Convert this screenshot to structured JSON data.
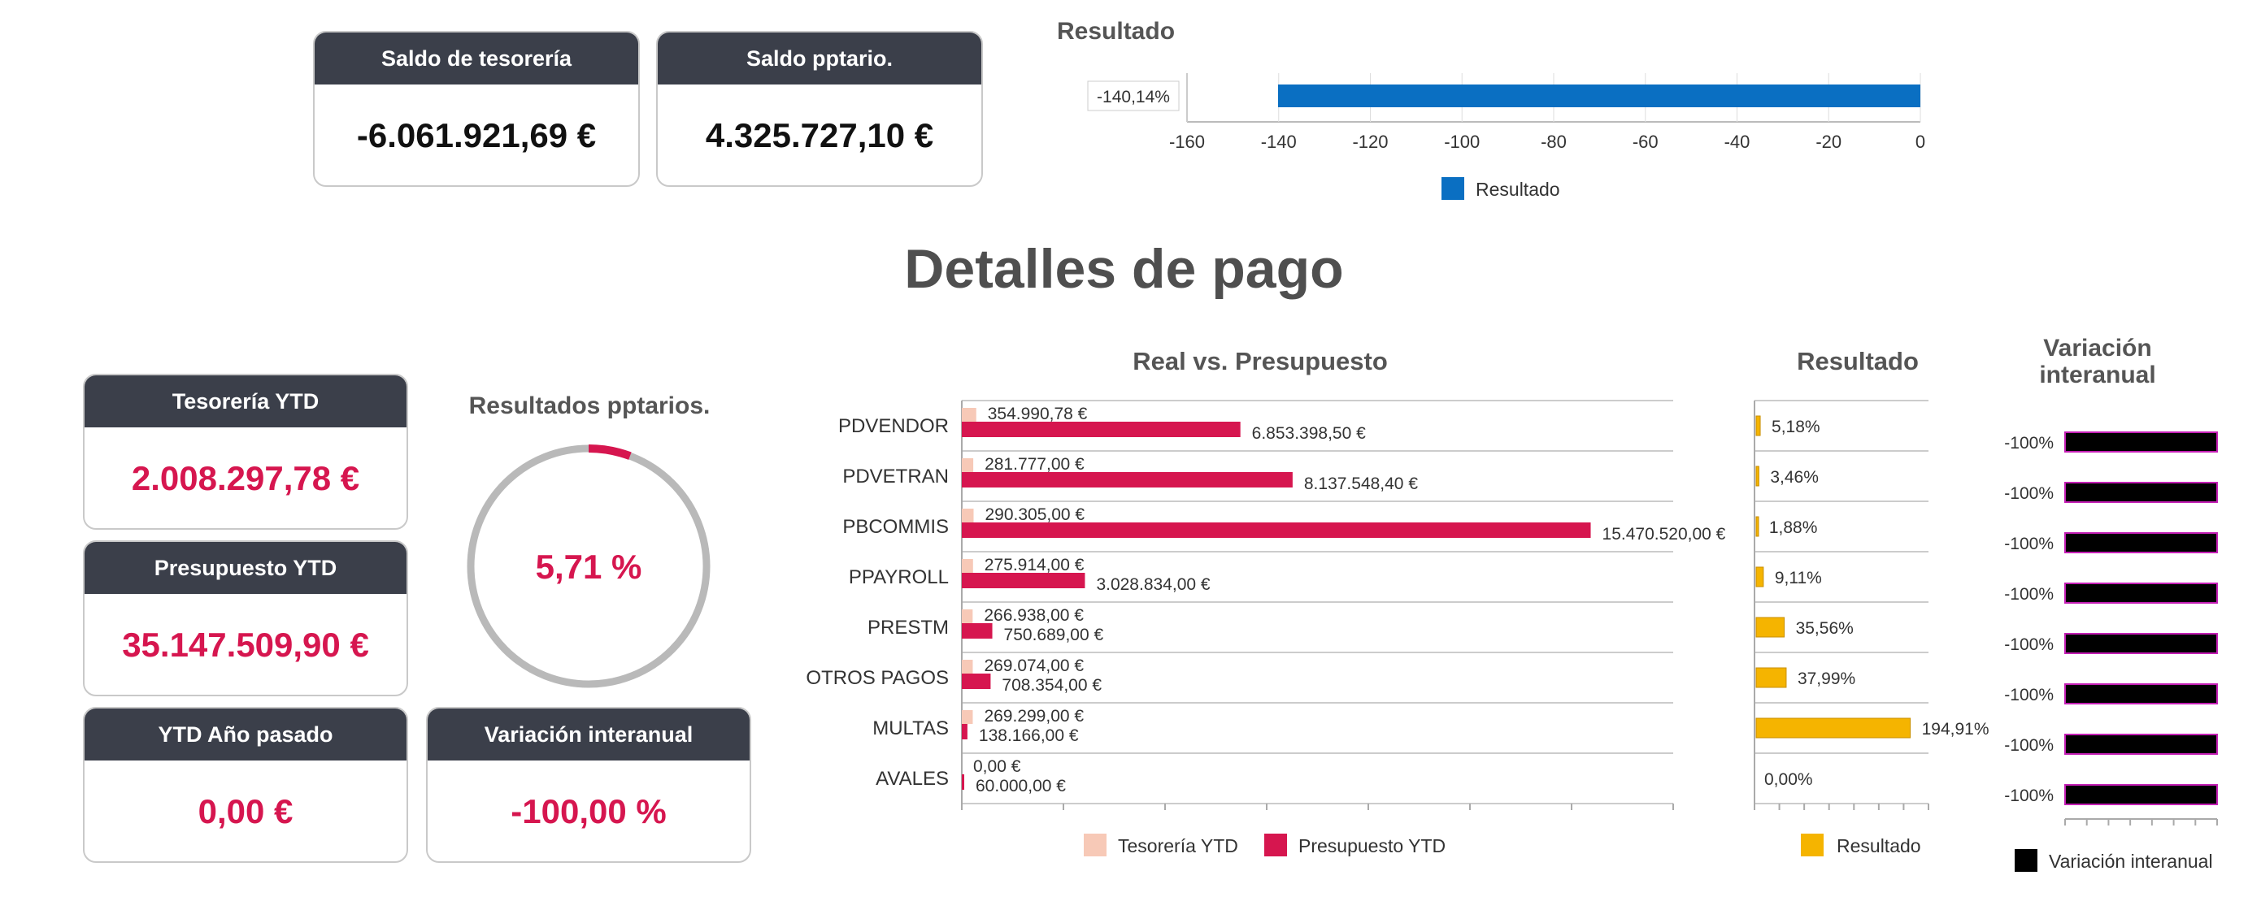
{
  "top_kpis": [
    {
      "label": "Saldo de tesorería",
      "value": "-6.061.921,69 €"
    },
    {
      "label": "Saldo pptario.",
      "value": "4.325.727,10 €"
    }
  ],
  "section_title": "Detalles de pago",
  "left_kpis": [
    {
      "label": "Tesorería YTD",
      "value": "2.008.297,78 €"
    },
    {
      "label": "Presupuesto YTD",
      "value": "35.147.509,90 €"
    },
    {
      "label": "YTD Año pasado",
      "value": "0,00 €"
    },
    {
      "label": "Variación interanual",
      "value": "-100,00 %"
    }
  ],
  "donut": {
    "title": "Resultados pptarios.",
    "value_label": "5,71 %",
    "percent": 5.71,
    "colors": {
      "track": "#b9b9b9",
      "fill": "#d6164f"
    }
  },
  "chart_data": [
    {
      "type": "bar",
      "orientation": "horizontal",
      "title": "Resultado",
      "categories": [
        ""
      ],
      "series": [
        {
          "name": "Resultado",
          "values": [
            -140.14
          ],
          "labels": [
            "-140,14%"
          ],
          "color": "#0a6fc2"
        }
      ],
      "xlim": [
        -160,
        0
      ],
      "ticks": [
        -160,
        -140,
        -120,
        -100,
        -80,
        -60,
        -40,
        -20,
        0
      ],
      "legend": "bottom"
    },
    {
      "type": "bar",
      "orientation": "horizontal",
      "title": "Real vs. Presupuesto",
      "categories": [
        "PDVENDOR",
        "PDVETRAN",
        "PBCOMMIS",
        "PPAYROLL",
        "PRESTM",
        "OTROS PAGOS",
        "MULTAS",
        "AVALES"
      ],
      "series": [
        {
          "name": "Tesorería YTD",
          "color": "#f7c9b7",
          "values": [
            354990.78,
            281777.0,
            290305.0,
            275914.0,
            266938.0,
            269074.0,
            269299.0,
            0.0
          ],
          "labels": [
            "354.990,78 €",
            "281.777,00 €",
            "290.305,00 €",
            "275.914,00 €",
            "266.938,00 €",
            "269.074,00 €",
            "269.299,00 €",
            "0,00 €"
          ]
        },
        {
          "name": "Presupuesto YTD",
          "color": "#d6164f",
          "values": [
            6853398.5,
            8137548.4,
            15470520.0,
            3028834.0,
            750689.0,
            708354.0,
            138166.0,
            60000.0
          ],
          "labels": [
            "6.853.398,50 €",
            "8.137.548,40 €",
            "15.470.520,00 €",
            "3.028.834,00 €",
            "750.689,00 €",
            "708.354,00 €",
            "138.166,00 €",
            "60.000,00 €"
          ]
        }
      ],
      "xlim": [
        0,
        17500000
      ],
      "legend": "bottom"
    },
    {
      "type": "bar",
      "orientation": "horizontal",
      "title": "Resultado",
      "categories": [
        "PDVENDOR",
        "PDVETRAN",
        "PBCOMMIS",
        "PPAYROLL",
        "PRESTM",
        "OTROS PAGOS",
        "MULTAS",
        "AVALES"
      ],
      "series": [
        {
          "name": "Resultado",
          "color": "#f5b400",
          "values": [
            5.18,
            3.46,
            1.88,
            9.11,
            35.56,
            37.99,
            194.91,
            0.0
          ],
          "labels": [
            "5,18%",
            "3,46%",
            "1,88%",
            "9,11%",
            "35,56%",
            "37,99%",
            "194,91%",
            "0,00%"
          ]
        }
      ],
      "xlim": [
        0,
        220
      ],
      "legend": "bottom"
    },
    {
      "type": "bar",
      "orientation": "horizontal",
      "title": "Variación interanual",
      "categories": [
        "PDVENDOR",
        "PDVETRAN",
        "PBCOMMIS",
        "PPAYROLL",
        "PRESTM",
        "OTROS PAGOS",
        "MULTAS",
        "AVALES"
      ],
      "series": [
        {
          "name": "Variación interanual",
          "color": "#000000",
          "border_color": "#c41fb5",
          "values": [
            -100,
            -100,
            -100,
            -100,
            -100,
            -100,
            -100,
            -100
          ],
          "labels": [
            "-100%",
            "-100%",
            "-100%",
            "-100%",
            "-100%",
            "-100%",
            "-100%",
            "-100%"
          ]
        }
      ],
      "xlim": [
        -100,
        0
      ],
      "legend": "bottom"
    }
  ]
}
